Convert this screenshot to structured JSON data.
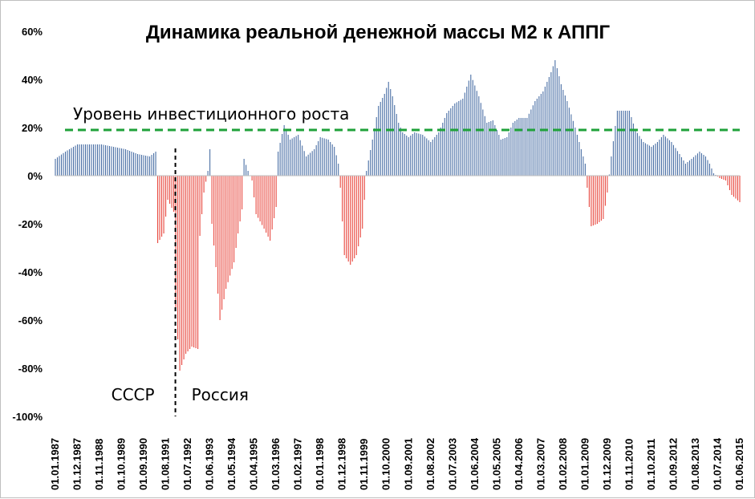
{
  "chart_data": {
    "type": "bar",
    "title": "Динамика реальной денежной массы М2 к АППГ",
    "xlabel": "",
    "ylabel": "",
    "ylim": [
      -100,
      60
    ],
    "yticks": [
      60,
      40,
      20,
      0,
      -20,
      -40,
      -60,
      -80,
      -100
    ],
    "ytick_labels": [
      "60%",
      "40%",
      "20%",
      "0%",
      "-20%",
      "-40%",
      "-60%",
      "-80%",
      "-100%"
    ],
    "x_range": [
      "1987-01",
      "2015-06"
    ],
    "xtick_labels": [
      "01.01.1987",
      "01.12.1987",
      "01.11.1988",
      "01.10.1989",
      "01.09.1990",
      "01.08.1991",
      "01.07.1992",
      "01.06.1993",
      "01.05.1994",
      "01.04.1995",
      "01.03.1996",
      "01.02.1997",
      "01.01.1998",
      "01.12.1998",
      "01.11.1999",
      "01.10.2000",
      "01.09.2001",
      "01.08.2002",
      "01.07.2003",
      "01.06.2004",
      "01.05.2005",
      "01.04.2006",
      "01.03.2007",
      "01.02.2008",
      "01.01.2009",
      "01.12.2009",
      "01.11.2010",
      "01.10.2011",
      "01.09.2012",
      "01.08.2013",
      "01.07.2014",
      "01.06.2015"
    ],
    "positive_color": "#4a6fa5",
    "negative_color": "#e8453c",
    "reference_line": {
      "value": 19,
      "label": "Уровень инвестиционного роста",
      "color": "#1fa13a",
      "style": "dashed"
    },
    "divider": {
      "date": "1991-12",
      "left_label": "СССР",
      "right_label": "Россия"
    },
    "anchors": [
      [
        "1987-01",
        7
      ],
      [
        "1987-06",
        10
      ],
      [
        "1987-12",
        13
      ],
      [
        "1988-06",
        13
      ],
      [
        "1988-12",
        13
      ],
      [
        "1989-06",
        12
      ],
      [
        "1989-12",
        11
      ],
      [
        "1990-06",
        9
      ],
      [
        "1990-12",
        8
      ],
      [
        "1991-03",
        10
      ],
      [
        "1991-04",
        -28
      ],
      [
        "1991-07",
        -24
      ],
      [
        "1991-09",
        -10
      ],
      [
        "1991-12",
        -15
      ],
      [
        "1992-01",
        -55
      ],
      [
        "1992-03",
        -81
      ],
      [
        "1992-06",
        -74
      ],
      [
        "1992-09",
        -71
      ],
      [
        "1992-12",
        -72
      ],
      [
        "1993-01",
        -25
      ],
      [
        "1993-03",
        -7
      ],
      [
        "1993-05",
        2
      ],
      [
        "1993-06",
        11
      ],
      [
        "1993-07",
        -20
      ],
      [
        "1993-09",
        -38
      ],
      [
        "1993-11",
        -60
      ],
      [
        "1994-02",
        -47
      ],
      [
        "1994-06",
        -36
      ],
      [
        "1994-08",
        -24
      ],
      [
        "1994-10",
        -14
      ],
      [
        "1994-11",
        7
      ],
      [
        "1995-01",
        2
      ],
      [
        "1995-03",
        -2
      ],
      [
        "1995-05",
        -16
      ],
      [
        "1995-09",
        -22
      ],
      [
        "1995-12",
        -27
      ],
      [
        "1996-03",
        -13
      ],
      [
        "1996-04",
        10
      ],
      [
        "1996-07",
        21
      ],
      [
        "1996-10",
        15
      ],
      [
        "1997-02",
        17
      ],
      [
        "1997-06",
        8
      ],
      [
        "1997-10",
        11
      ],
      [
        "1998-01",
        16
      ],
      [
        "1998-05",
        15
      ],
      [
        "1998-08",
        12
      ],
      [
        "1998-10",
        5
      ],
      [
        "1998-11",
        -5
      ],
      [
        "1999-01",
        -33
      ],
      [
        "1999-04",
        -37
      ],
      [
        "1999-07",
        -33
      ],
      [
        "1999-10",
        -22
      ],
      [
        "1999-12",
        2
      ],
      [
        "2000-03",
        15
      ],
      [
        "2000-06",
        29
      ],
      [
        "2000-09",
        34
      ],
      [
        "2000-11",
        39
      ],
      [
        "2001-01",
        33
      ],
      [
        "2001-04",
        22
      ],
      [
        "2001-06",
        18
      ],
      [
        "2001-09",
        16
      ],
      [
        "2001-12",
        18
      ],
      [
        "2002-04",
        17
      ],
      [
        "2002-08",
        14
      ],
      [
        "2002-12",
        18
      ],
      [
        "2003-04",
        26
      ],
      [
        "2003-08",
        30
      ],
      [
        "2003-12",
        32
      ],
      [
        "2004-04",
        42
      ],
      [
        "2004-08",
        33
      ],
      [
        "2004-12",
        22
      ],
      [
        "2005-03",
        23
      ],
      [
        "2005-07",
        15
      ],
      [
        "2005-10",
        16
      ],
      [
        "2006-01",
        22
      ],
      [
        "2006-04",
        24
      ],
      [
        "2006-08",
        24
      ],
      [
        "2006-12",
        31
      ],
      [
        "2007-04",
        35
      ],
      [
        "2007-08",
        43
      ],
      [
        "2007-10",
        48
      ],
      [
        "2008-01",
        38
      ],
      [
        "2008-04",
        31
      ],
      [
        "2008-08",
        20
      ],
      [
        "2008-11",
        11
      ],
      [
        "2009-01",
        5
      ],
      [
        "2009-02",
        -5
      ],
      [
        "2009-04",
        -21
      ],
      [
        "2009-07",
        -20
      ],
      [
        "2009-10",
        -18
      ],
      [
        "2009-12",
        -7
      ],
      [
        "2010-02",
        8
      ],
      [
        "2010-05",
        27
      ],
      [
        "2010-08",
        27
      ],
      [
        "2010-11",
        27
      ],
      [
        "2011-02",
        19
      ],
      [
        "2011-06",
        14
      ],
      [
        "2011-10",
        12
      ],
      [
        "2012-01",
        14
      ],
      [
        "2012-04",
        17
      ],
      [
        "2012-08",
        14
      ],
      [
        "2012-12",
        9
      ],
      [
        "2013-03",
        5
      ],
      [
        "2013-06",
        7
      ],
      [
        "2013-10",
        10
      ],
      [
        "2014-01",
        8
      ],
      [
        "2014-03",
        5
      ],
      [
        "2014-05",
        1
      ],
      [
        "2014-08",
        -1
      ],
      [
        "2014-11",
        -2
      ],
      [
        "2015-02",
        -8
      ],
      [
        "2015-06",
        -11
      ]
    ]
  }
}
